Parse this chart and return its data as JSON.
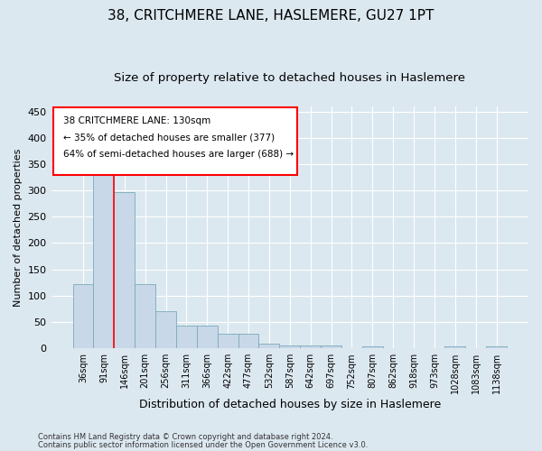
{
  "title": "38, CRITCHMERE LANE, HASLEMERE, GU27 1PT",
  "subtitle": "Size of property relative to detached houses in Haslemere",
  "xlabel": "Distribution of detached houses by size in Haslemere",
  "ylabel": "Number of detached properties",
  "bar_labels": [
    "36sqm",
    "91sqm",
    "146sqm",
    "201sqm",
    "256sqm",
    "311sqm",
    "366sqm",
    "422sqm",
    "477sqm",
    "532sqm",
    "587sqm",
    "642sqm",
    "697sqm",
    "752sqm",
    "807sqm",
    "862sqm",
    "918sqm",
    "973sqm",
    "1028sqm",
    "1083sqm",
    "1138sqm"
  ],
  "bar_values": [
    122,
    370,
    297,
    122,
    70,
    43,
    43,
    28,
    28,
    9,
    5,
    5,
    5,
    0,
    3,
    0,
    0,
    0,
    3,
    0,
    3
  ],
  "bar_color": "#c8d8e8",
  "bar_edge_color": "#7aaabb",
  "ylim": [
    0,
    460
  ],
  "yticks": [
    0,
    50,
    100,
    150,
    200,
    250,
    300,
    350,
    400,
    450
  ],
  "red_line_x": 1.5,
  "annotation_line1": "38 CRITCHMERE LANE: 130sqm",
  "annotation_line2": "← 35% of detached houses are smaller (377)",
  "annotation_line3": "64% of semi-detached houses are larger (688) →",
  "footer_line1": "Contains HM Land Registry data © Crown copyright and database right 2024.",
  "footer_line2": "Contains public sector information licensed under the Open Government Licence v3.0.",
  "bg_color": "#dce8f0",
  "plot_bg_color": "#dce8f0",
  "title_fontsize": 11,
  "subtitle_fontsize": 9.5,
  "tick_label_fontsize": 7,
  "ylabel_fontsize": 8,
  "xlabel_fontsize": 9,
  "footer_fontsize": 6,
  "annot_fontsize": 7.5
}
